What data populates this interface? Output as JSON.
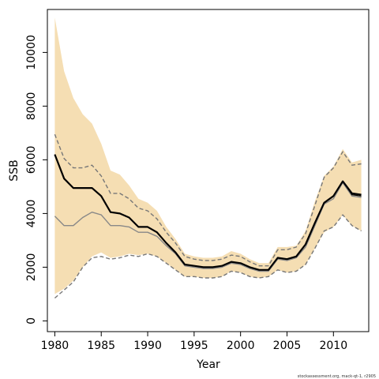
{
  "chart_data": {
    "type": "line",
    "title": "",
    "xlabel": "Year",
    "ylabel": "SSB",
    "xlim": [
      1979.2,
      2013.8
    ],
    "ylim": [
      -400,
      11600
    ],
    "xticks": [
      1980,
      1985,
      1990,
      1995,
      2000,
      2005,
      2010
    ],
    "yticks": [
      0,
      2000,
      4000,
      6000,
      8000,
      10000
    ],
    "grid": false,
    "legend": "none",
    "x": [
      1980,
      1981,
      1982,
      1983,
      1984,
      1985,
      1986,
      1987,
      1988,
      1989,
      1990,
      1991,
      1992,
      1993,
      1994,
      1995,
      1996,
      1997,
      1998,
      1999,
      2000,
      2001,
      2002,
      2003,
      2004,
      2005,
      2006,
      2007,
      2008,
      2009,
      2010,
      2011,
      2012,
      2013
    ],
    "series": [
      {
        "role": "band_upper",
        "values": [
          11300,
          9300,
          8300,
          7700,
          7350,
          6600,
          5600,
          5450,
          5050,
          4550,
          4400,
          4100,
          3500,
          3050,
          2500,
          2400,
          2350,
          2350,
          2400,
          2600,
          2500,
          2300,
          2150,
          2150,
          2750,
          2750,
          2800,
          3350,
          4450,
          5400,
          5750,
          6400,
          5900,
          6000
        ]
      },
      {
        "role": "band_lower",
        "values": [
          1000,
          1200,
          1500,
          2000,
          2400,
          2550,
          2350,
          2400,
          2500,
          2450,
          2500,
          2400,
          2150,
          1900,
          1650,
          1650,
          1600,
          1600,
          1650,
          1850,
          1800,
          1650,
          1600,
          1650,
          1900,
          1800,
          1850,
          2100,
          2700,
          3300,
          3500,
          3950,
          3550,
          3350
        ]
      },
      {
        "role": "median",
        "values": [
          6200,
          5300,
          4950,
          4950,
          4950,
          4650,
          4050,
          4000,
          3850,
          3500,
          3500,
          3300,
          2900,
          2550,
          2100,
          2050,
          2000,
          2000,
          2050,
          2200,
          2150,
          2000,
          1900,
          1900,
          2350,
          2300,
          2400,
          2850,
          3650,
          4400,
          4650,
          5200,
          4750,
          4700
        ]
      },
      {
        "role": "mean",
        "values": [
          6200,
          5300,
          4950,
          4950,
          4950,
          4650,
          4050,
          4000,
          3850,
          3500,
          3500,
          3300,
          2900,
          2550,
          2100,
          2050,
          2000,
          2000,
          2050,
          2200,
          2150,
          2000,
          1900,
          1900,
          2350,
          2300,
          2400,
          2850,
          3650,
          4400,
          4650,
          5200,
          4700,
          4650
        ]
      },
      {
        "role": "mode",
        "values": [
          3900,
          3550,
          3550,
          3850,
          4050,
          3950,
          3550,
          3550,
          3500,
          3300,
          3300,
          3150,
          2800,
          2500,
          2050,
          2000,
          1950,
          1950,
          2000,
          2150,
          2100,
          1950,
          1850,
          1850,
          2300,
          2250,
          2350,
          2750,
          3550,
          4350,
          4550,
          5150,
          4650,
          4600
        ]
      },
      {
        "role": "ci_upper",
        "values": [
          6950,
          6050,
          5700,
          5700,
          5800,
          5400,
          4750,
          4750,
          4550,
          4200,
          4100,
          3800,
          3300,
          2900,
          2400,
          2300,
          2250,
          2250,
          2300,
          2450,
          2400,
          2200,
          2050,
          2050,
          2650,
          2650,
          2750,
          3250,
          4300,
          5350,
          5700,
          6300,
          5800,
          5850
        ]
      },
      {
        "role": "ci_lower",
        "values": [
          850,
          1150,
          1450,
          2000,
          2350,
          2400,
          2300,
          2350,
          2450,
          2400,
          2500,
          2400,
          2150,
          1900,
          1650,
          1650,
          1600,
          1600,
          1650,
          1850,
          1800,
          1650,
          1600,
          1650,
          1900,
          1800,
          1850,
          2100,
          2700,
          3350,
          3500,
          3950,
          3550,
          3350
        ]
      }
    ],
    "colors": {
      "band": "#F5DEB3",
      "median": "#000000",
      "mode": "#888888",
      "ci": "#777777",
      "axis": "#000000"
    }
  },
  "footer": "stockassessment.org, mack-qt-1, r2905"
}
